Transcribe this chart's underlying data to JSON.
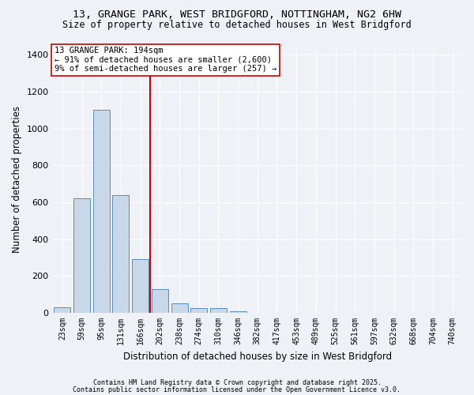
{
  "title_line1": "13, GRANGE PARK, WEST BRIDGFORD, NOTTINGHAM, NG2 6HW",
  "title_line2": "Size of property relative to detached houses in West Bridgford",
  "xlabel": "Distribution of detached houses by size in West Bridgford",
  "ylabel": "Number of detached properties",
  "bin_labels": [
    "23sqm",
    "59sqm",
    "95sqm",
    "131sqm",
    "166sqm",
    "202sqm",
    "238sqm",
    "274sqm",
    "310sqm",
    "346sqm",
    "382sqm",
    "417sqm",
    "453sqm",
    "489sqm",
    "525sqm",
    "561sqm",
    "597sqm",
    "632sqm",
    "668sqm",
    "704sqm",
    "740sqm"
  ],
  "bar_heights": [
    30,
    620,
    1100,
    640,
    290,
    130,
    50,
    25,
    25,
    10,
    0,
    0,
    0,
    0,
    0,
    0,
    0,
    0,
    0,
    0,
    0
  ],
  "bar_color": "#c8d8e8",
  "bar_edge_color": "#5b8db8",
  "subject_line_label": "13 GRANGE PARK: 194sqm",
  "annotation_line2": "← 91% of detached houses are smaller (2,600)",
  "annotation_line3": "9% of semi-detached houses are larger (257) →",
  "vline_color": "#cc0000",
  "background_color": "#eef2f7",
  "grid_color": "#ffffff",
  "ylim": [
    0,
    1450
  ],
  "yticks": [
    0,
    200,
    400,
    600,
    800,
    1000,
    1200,
    1400
  ],
  "footer_line1": "Contains HM Land Registry data © Crown copyright and database right 2025.",
  "footer_line2": "Contains public sector information licensed under the Open Government Licence v3.0.",
  "vline_x_index": 4.5
}
